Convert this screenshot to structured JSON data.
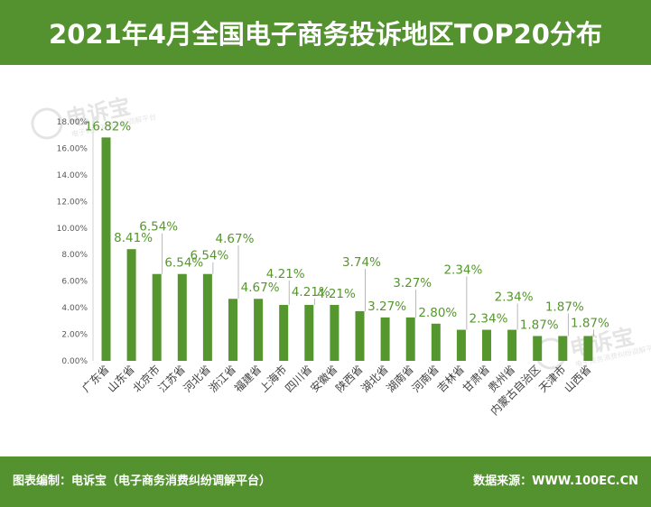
{
  "header": {
    "title": "2021年4月全国电子商务投诉地区TOP20分布"
  },
  "footer": {
    "left": "图表编制：电诉宝（电子商务消费纠纷调解平台）",
    "right": "数据来源：WWW.100EC.CN"
  },
  "watermark": {
    "text": "电诉宝",
    "subtext": "电子商务消费纠纷调解平台"
  },
  "colors": {
    "bar": "#56962e",
    "label": "#56962e",
    "header": "#54922f"
  },
  "chart_data": {
    "type": "bar",
    "title": "2021年4月全国电子商务投诉地区TOP20分布",
    "categories": [
      "广东省",
      "山东省",
      "北京市",
      "江苏省",
      "河北省",
      "浙江省",
      "福建省",
      "上海市",
      "四川省",
      "安徽省",
      "陕西省",
      "湖北省",
      "湖南省",
      "河南省",
      "吉林省",
      "甘肃省",
      "贵州省",
      "内蒙古自治区",
      "天津市",
      "山西省"
    ],
    "values": [
      16.82,
      8.41,
      6.54,
      6.54,
      6.54,
      4.67,
      4.67,
      4.21,
      4.21,
      4.21,
      3.74,
      3.27,
      3.27,
      2.8,
      2.34,
      2.34,
      2.34,
      1.87,
      1.87,
      1.87
    ],
    "data_labels": [
      "16.82%",
      "8.41%",
      "6.54%",
      "6.54%",
      "6.54%",
      "4.67%",
      "4.67%",
      "4.21%",
      "4.21%",
      "4.21%",
      "3.74%",
      "3.27%",
      "3.27%",
      "2.80%",
      "2.34%",
      "2.34%",
      "2.34%",
      "1.87%",
      "1.87%",
      "1.87%"
    ],
    "yticks": [
      "0.00%",
      "2.00%",
      "4.00%",
      "6.00%",
      "8.00%",
      "10.00%",
      "12.00%",
      "14.00%",
      "16.00%",
      "18.00%"
    ],
    "ylim": [
      0,
      18
    ],
    "xlabel": "",
    "ylabel": "",
    "grid": false,
    "legend": "none"
  }
}
